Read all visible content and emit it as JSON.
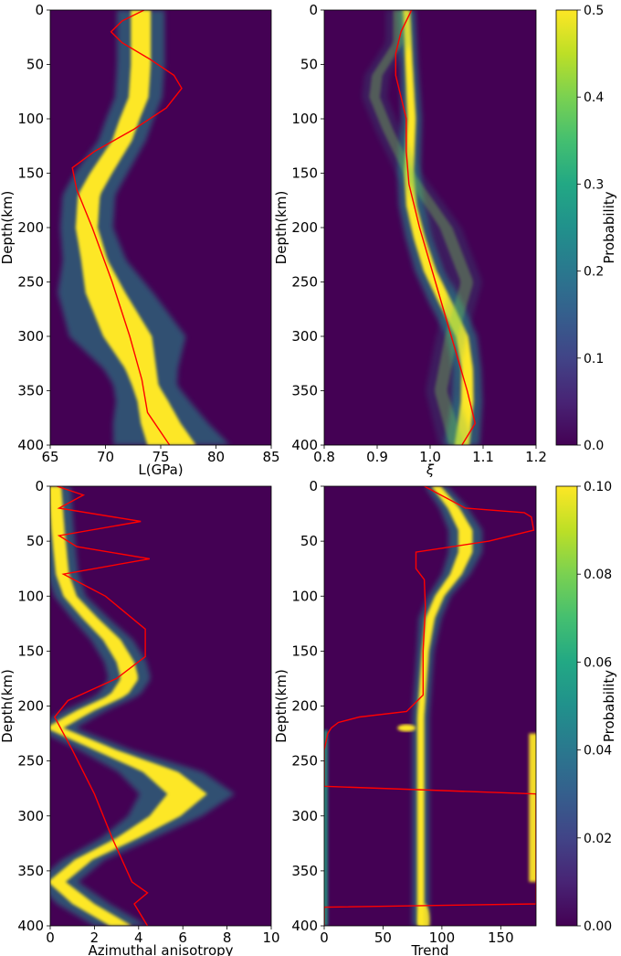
{
  "chart_data": [
    {
      "type": "heatmap",
      "xlabel": "L(GPa)",
      "ylabel": "Depth(km)",
      "xlim": [
        65,
        85
      ],
      "ylim": [
        400,
        0
      ],
      "xticks": [
        65,
        70,
        75,
        80,
        85
      ],
      "yticks": [
        0,
        50,
        100,
        150,
        200,
        250,
        300,
        350,
        400
      ],
      "x_tick_labels": [
        "65",
        "70",
        "75",
        "80",
        "85"
      ],
      "y_tick_labels": [
        "0",
        "50",
        "100",
        "150",
        "200",
        "250",
        "300",
        "350",
        "400"
      ],
      "ridge": {
        "depth": [
          0,
          50,
          80,
          100,
          120,
          150,
          170,
          200,
          230,
          260,
          300,
          330,
          345,
          360,
          380,
          400
        ],
        "value": [
          73.2,
          73.2,
          73.0,
          72.2,
          71.5,
          69.6,
          68.5,
          68.3,
          69.0,
          70.0,
          72.0,
          73.2,
          73.6,
          74.3,
          75.0,
          76.0
        ],
        "width": [
          0.9,
          0.9,
          0.9,
          0.9,
          0.9,
          1.0,
          1.0,
          1.0,
          1.2,
          1.8,
          2.2,
          1.4,
          1.2,
          1.4,
          1.8,
          2.2
        ]
      },
      "red_line": {
        "depth": [
          0,
          10,
          20,
          30,
          45,
          60,
          72,
          90,
          110,
          130,
          145,
          165,
          200,
          250,
          300,
          340,
          370,
          400
        ],
        "value": [
          73.5,
          71.5,
          70.5,
          71.5,
          74.0,
          76.2,
          76.9,
          75.5,
          72.5,
          69.0,
          67.0,
          67.4,
          68.8,
          70.6,
          72.2,
          73.3,
          73.8,
          75.8
        ]
      }
    },
    {
      "type": "heatmap",
      "xlabel": "ξ",
      "ylabel": "Depth(km)",
      "xlim": [
        0.8,
        1.2
      ],
      "ylim": [
        400,
        0
      ],
      "xticks": [
        0.8,
        0.9,
        1.0,
        1.1,
        1.2
      ],
      "yticks": [
        0,
        50,
        100,
        150,
        200,
        250,
        300,
        350,
        400
      ],
      "x_tick_labels": [
        "0.8",
        "0.9",
        "1.0",
        "1.1",
        "1.2"
      ],
      "y_tick_labels": [
        "0",
        "50",
        "100",
        "150",
        "200",
        "250",
        "300",
        "350",
        "400"
      ],
      "ridge": {
        "depth": [
          0,
          50,
          100,
          150,
          180,
          210,
          240,
          270,
          300,
          330,
          360,
          400
        ],
        "value": [
          0.955,
          0.96,
          0.965,
          0.96,
          0.965,
          0.98,
          1.0,
          1.03,
          1.06,
          1.07,
          1.07,
          1.06
        ],
        "width": [
          0.007,
          0.007,
          0.008,
          0.009,
          0.01,
          0.011,
          0.012,
          0.013,
          0.012,
          0.011,
          0.012,
          0.014
        ]
      },
      "ridge2": {
        "depth": [
          30,
          60,
          80,
          110,
          150,
          200,
          250,
          300,
          350,
          400
        ],
        "value": [
          0.94,
          0.9,
          0.895,
          0.92,
          0.96,
          1.03,
          1.07,
          1.04,
          1.02,
          1.05
        ],
        "width": [
          0.01,
          0.01,
          0.01,
          0.01,
          0.01,
          0.012,
          0.012,
          0.012,
          0.012,
          0.014
        ]
      },
      "red_line": {
        "depth": [
          0,
          20,
          40,
          60,
          80,
          100,
          130,
          160,
          200,
          250,
          300,
          350,
          380,
          400
        ],
        "value": [
          0.965,
          0.945,
          0.935,
          0.935,
          0.945,
          0.955,
          0.955,
          0.96,
          0.98,
          1.01,
          1.04,
          1.07,
          1.085,
          1.06
        ]
      }
    },
    {
      "type": "heatmap",
      "xlabel": "Azimuthal anisotropy",
      "ylabel": "Depth(km)",
      "xlim": [
        0,
        10
      ],
      "ylim": [
        400,
        0
      ],
      "xticks": [
        0,
        2,
        4,
        6,
        8,
        10
      ],
      "yticks": [
        0,
        50,
        100,
        150,
        200,
        250,
        300,
        350,
        400
      ],
      "x_tick_labels": [
        "0",
        "2",
        "4",
        "6",
        "8",
        "10"
      ],
      "y_tick_labels": [
        "0",
        "50",
        "100",
        "150",
        "200",
        "250",
        "300",
        "350",
        "400"
      ],
      "ridge": {
        "depth": [
          0,
          40,
          80,
          100,
          120,
          140,
          160,
          175,
          190,
          205,
          220,
          240,
          260,
          280,
          300,
          320,
          340,
          360,
          380,
          400
        ],
        "value": [
          0.2,
          0.35,
          0.55,
          0.9,
          1.8,
          2.8,
          3.4,
          3.6,
          3.1,
          1.5,
          0.2,
          2.5,
          5.0,
          6.2,
          5.2,
          3.5,
          1.5,
          0.3,
          1.5,
          3.2
        ],
        "width": [
          0.3,
          0.3,
          0.3,
          0.3,
          0.35,
          0.4,
          0.4,
          0.4,
          0.4,
          0.4,
          0.4,
          0.5,
          0.8,
          0.9,
          0.7,
          0.5,
          0.4,
          0.4,
          0.5,
          0.5
        ]
      },
      "red_line": {
        "depth": [
          0,
          8,
          20,
          32,
          45,
          55,
          66,
          80,
          100,
          130,
          155,
          175,
          195,
          210,
          240,
          280,
          320,
          360,
          370,
          380,
          400
        ],
        "value": [
          0.3,
          1.5,
          0.4,
          4.1,
          0.4,
          1.2,
          4.5,
          0.6,
          2.5,
          4.3,
          4.3,
          3.0,
          0.8,
          0.2,
          1.0,
          2.0,
          2.8,
          3.7,
          4.4,
          3.8,
          4.4
        ]
      }
    },
    {
      "type": "heatmap",
      "xlabel": "Trend",
      "ylabel": "Depth(km)",
      "xlim": [
        0,
        180
      ],
      "ylim": [
        400,
        0
      ],
      "xticks": [
        0,
        50,
        100,
        150
      ],
      "yticks": [
        0,
        50,
        100,
        150,
        200,
        250,
        300,
        350,
        400
      ],
      "x_tick_labels": [
        "0",
        "50",
        "100",
        "150"
      ],
      "y_tick_labels": [
        "0",
        "50",
        "100",
        "150",
        "200",
        "250",
        "300",
        "350",
        "400"
      ],
      "ridge": {
        "depth": [
          0,
          20,
          40,
          60,
          80,
          100,
          120,
          150,
          180,
          210
        ],
        "value": [
          95,
          110,
          120,
          120,
          112,
          98,
          90,
          86,
          84,
          82
        ],
        "width": [
          4,
          5,
          6,
          6,
          5,
          4,
          4,
          3,
          3,
          3
        ]
      },
      "red_line": {
        "depth": [
          0,
          20,
          24,
          28,
          40,
          50,
          60,
          75,
          85,
          110,
          150,
          190,
          205,
          210,
          215,
          220,
          225,
          240,
          272,
          273,
          280,
          376,
          380,
          383,
          400
        ],
        "value": [
          85,
          120,
          170,
          176,
          178,
          140,
          78,
          78,
          85,
          86,
          84,
          84,
          70,
          30,
          12,
          6,
          3,
          0,
          0,
          0,
          180,
          180,
          180,
          0,
          0
        ]
      }
    },
    {
      "type": "colorbar",
      "label": "Probability",
      "range": [
        0.0,
        0.5
      ],
      "ticks": [
        0.0,
        0.1,
        0.2,
        0.3,
        0.4,
        0.5
      ],
      "tick_labels": [
        "0.0",
        "0.1",
        "0.2",
        "0.3",
        "0.4",
        "0.5"
      ]
    },
    {
      "type": "colorbar",
      "label": "Probability",
      "range": [
        0.0,
        0.1
      ],
      "ticks": [
        0.0,
        0.02,
        0.04,
        0.06,
        0.08,
        0.1
      ],
      "tick_labels": [
        "0.00",
        "0.02",
        "0.04",
        "0.06",
        "0.08",
        "0.10"
      ]
    }
  ],
  "colors": {
    "background": "#440154",
    "peak": "#fde725",
    "model_line": "#ff0000"
  }
}
